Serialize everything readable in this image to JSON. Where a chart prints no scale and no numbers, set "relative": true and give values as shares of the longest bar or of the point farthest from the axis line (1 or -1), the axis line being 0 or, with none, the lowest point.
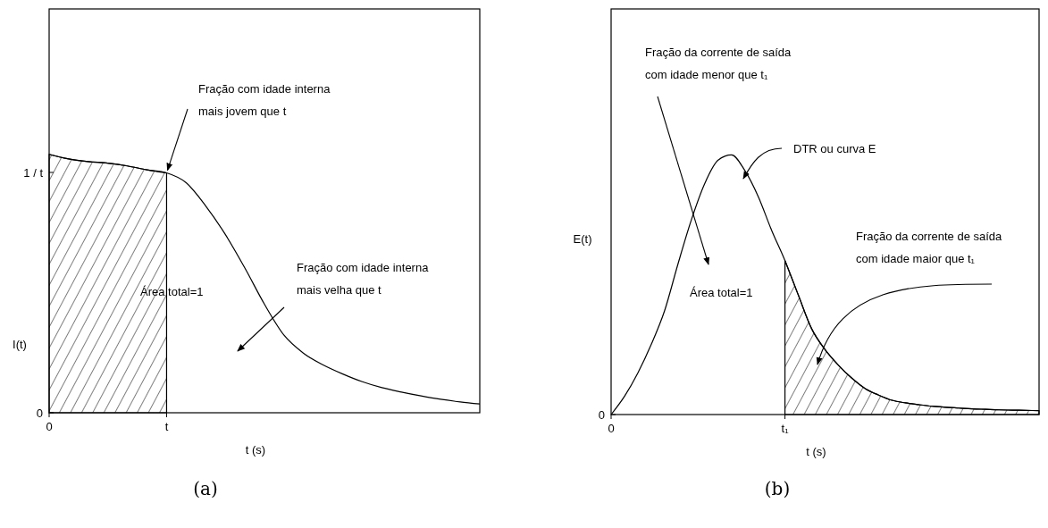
{
  "chart_data": [
    {
      "type": "line",
      "title": "(a)",
      "xlabel": "t (s)",
      "ylabel": "I(t)",
      "relative": true,
      "categories": [
        "0",
        null,
        null,
        null,
        null,
        null,
        "t",
        null,
        null,
        null,
        null,
        null,
        null,
        null,
        null,
        null,
        null,
        null,
        null,
        null,
        null,
        null,
        null
      ],
      "series": [
        {
          "color": "#000000",
          "values": [
            1.0,
            0.982,
            0.972,
            0.966,
            0.955,
            0.94,
            0.928,
            0.89,
            0.8,
            0.69,
            0.56,
            0.42,
            0.3,
            0.23,
            0.185,
            0.15,
            0.12,
            0.097,
            0.08,
            0.065,
            0.052,
            0.042,
            0.034
          ]
        },
        {
          "type": "area",
          "color": "#000000",
          "values": [
            1.0,
            0.982,
            0.972,
            0.966,
            0.955,
            0.94,
            0.928,
            null,
            null,
            null,
            null,
            null,
            null,
            null,
            null,
            null,
            null,
            null,
            null,
            null,
            null,
            null,
            null
          ]
        }
      ],
      "annotations": [
        "1 / t",
        "0",
        {
          "text": "Fração com idade interna\nmais jovem que t",
          "x": "t",
          "y": 0.928
        },
        "Área total=1",
        "Fração com idade interna\nmais velha que t"
      ]
    },
    {
      "type": "line",
      "title": "(b)",
      "xlabel": "t (s)",
      "ylabel": "E(t)",
      "relative": true,
      "categories": [
        "0",
        null,
        null,
        null,
        null,
        null,
        null,
        null,
        null,
        null,
        null,
        null,
        null,
        "t₁",
        null,
        null,
        null,
        null,
        null,
        null,
        null,
        null,
        null,
        null,
        null,
        null,
        null,
        null,
        null,
        null,
        null,
        null,
        null
      ],
      "series": [
        {
          "color": "#000000",
          "values": [
            0,
            0.07,
            0.16,
            0.27,
            0.4,
            0.58,
            0.75,
            0.89,
            0.98,
            1.0,
            0.94,
            0.84,
            0.71,
            0.593,
            0.46,
            0.33,
            0.25,
            0.19,
            0.14,
            0.1,
            0.075,
            0.055,
            0.045,
            0.038,
            0.032,
            0.028,
            0.025,
            0.022,
            0.02,
            0.018,
            0.017,
            0.016,
            0.015
          ]
        },
        {
          "type": "area",
          "color": "#000000",
          "values": [
            null,
            null,
            null,
            null,
            null,
            null,
            null,
            null,
            null,
            null,
            null,
            null,
            null,
            0.593,
            0.46,
            0.33,
            0.25,
            0.19,
            0.14,
            0.1,
            0.075,
            0.055,
            0.045,
            0.038,
            0.032,
            0.028,
            0.025,
            0.022,
            0.02,
            0.018,
            0.017,
            0.016,
            0.015
          ]
        }
      ],
      "annotations": [
        "0",
        "Fração da corrente de saída\ncom idade menor que t₁",
        "DTR ou curva E",
        "Área total=1",
        "Fração da corrente de saída\ncom idade maior que t₁"
      ]
    }
  ]
}
